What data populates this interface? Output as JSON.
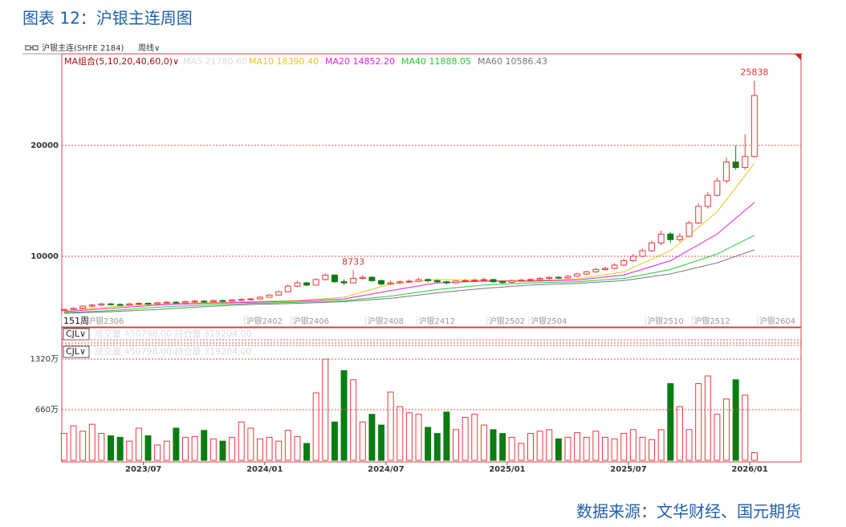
{
  "chart_data": {
    "type": "candlestick",
    "title": "图表 12：沪银主连周图",
    "source": "数据来源：文华财经、国元期货",
    "toolbar": {
      "symbol": "沪银主连(SHFE 2184)",
      "period": "周线∨"
    },
    "ma_group": "MA组合(5,10,20,40,60,0)∨",
    "ma_disabled": "MA5 21780.60",
    "bar_count_label": "151周",
    "xlim": [
      -0.5,
      158
    ],
    "ylim": [
      3620,
      28260
    ],
    "yticks": [
      10000,
      20000
    ],
    "grid": true,
    "up_color": "#e8393a",
    "down_color": "#0a7d12",
    "x": [
      0,
      2,
      4,
      6,
      8,
      10,
      12,
      14,
      16,
      18,
      20,
      22,
      24,
      26,
      28,
      30,
      32,
      34,
      36,
      38,
      40,
      42,
      44,
      46,
      48,
      50,
      52,
      54,
      56,
      58,
      60,
      62,
      64,
      66,
      68,
      70,
      72,
      74,
      76,
      78,
      80,
      82,
      84,
      86,
      88,
      90,
      92,
      94,
      96,
      98,
      100,
      102,
      104,
      106,
      108,
      110,
      112,
      114,
      116,
      118,
      120,
      122,
      124,
      126,
      128,
      130,
      132,
      134,
      136,
      138,
      140,
      142,
      144,
      146,
      148
    ],
    "open": [
      5100,
      5200,
      5300,
      5500,
      5600,
      5700,
      5650,
      5600,
      5700,
      5750,
      5700,
      5800,
      5850,
      5800,
      5900,
      5950,
      5900,
      6000,
      5950,
      6050,
      6100,
      6150,
      6300,
      6500,
      6800,
      7300,
      7600,
      7400,
      7900,
      8300,
      7700,
      7600,
      8000,
      8100,
      7800,
      7500,
      7600,
      7700,
      7750,
      7900,
      7800,
      7700,
      7600,
      7750,
      7800,
      7850,
      7900,
      7700,
      7650,
      7800,
      7850,
      7900,
      8000,
      8100,
      8050,
      8200,
      8400,
      8600,
      8800,
      8900,
      9200,
      9600,
      10000,
      10500,
      11200,
      12000,
      11500,
      11800,
      13000,
      14500,
      15500,
      16800,
      18500,
      18000,
      19000
    ],
    "high": [
      5300,
      5400,
      5600,
      5700,
      5800,
      5800,
      5750,
      5800,
      5850,
      5850,
      5900,
      5950,
      5950,
      6000,
      6050,
      6050,
      6100,
      6100,
      6150,
      6200,
      6250,
      6400,
      6600,
      6900,
      7450,
      7800,
      7700,
      8000,
      8450,
      8350,
      7900,
      8733,
      8300,
      8200,
      7900,
      7800,
      7850,
      7900,
      8050,
      8000,
      7900,
      7800,
      7850,
      7950,
      7950,
      8050,
      7950,
      7800,
      7900,
      7950,
      8000,
      8100,
      8200,
      8200,
      8300,
      8500,
      8700,
      8950,
      9050,
      9350,
      9750,
      10200,
      10700,
      11400,
      12300,
      12200,
      12100,
      13200,
      14800,
      15800,
      17100,
      18900,
      20000,
      21000,
      25838
    ],
    "low": [
      5050,
      5150,
      5250,
      5400,
      5500,
      5550,
      5500,
      5550,
      5600,
      5600,
      5650,
      5700,
      5700,
      5750,
      5800,
      5800,
      5850,
      5850,
      5900,
      5950,
      6000,
      6100,
      6250,
      6450,
      6750,
      7200,
      7300,
      7350,
      7800,
      7600,
      7400,
      7550,
      7900,
      7700,
      7350,
      7400,
      7500,
      7600,
      7650,
      7650,
      7550,
      7450,
      7500,
      7650,
      7700,
      7750,
      7600,
      7500,
      7550,
      7700,
      7750,
      7800,
      7900,
      7950,
      7950,
      8100,
      8300,
      8500,
      8700,
      8800,
      9100,
      9500,
      9900,
      10400,
      11000,
      11200,
      11300,
      11700,
      12900,
      14300,
      15400,
      16600,
      17800,
      17800,
      18900
    ],
    "close": [
      5200,
      5300,
      5500,
      5600,
      5700,
      5650,
      5600,
      5700,
      5750,
      5700,
      5800,
      5850,
      5800,
      5900,
      5950,
      5900,
      6000,
      5950,
      6050,
      6100,
      6150,
      6300,
      6500,
      6800,
      7300,
      7600,
      7400,
      7900,
      8300,
      7700,
      7600,
      8000,
      8100,
      7800,
      7500,
      7600,
      7700,
      7750,
      7900,
      7800,
      7700,
      7600,
      7750,
      7800,
      7850,
      7900,
      7700,
      7650,
      7800,
      7850,
      7900,
      8000,
      8100,
      8050,
      8200,
      8400,
      8600,
      8800,
      8900,
      9200,
      9600,
      10000,
      10500,
      11200,
      12000,
      11500,
      11800,
      13000,
      14500,
      15500,
      16800,
      18500,
      18000,
      19000,
      24500
    ],
    "series": [
      {
        "name": "MA10 18390.40",
        "color": "#e6c619",
        "x": [
          0,
          10,
          20,
          30,
          40,
          50,
          60,
          70,
          80,
          90,
          100,
          110,
          120,
          130,
          140,
          148
        ],
        "values": [
          5100,
          5450,
          5700,
          5800,
          5900,
          6000,
          6300,
          7500,
          7900,
          7800,
          7800,
          7950,
          8600,
          10500,
          14000,
          18390
        ]
      },
      {
        "name": "MA20 14852.20",
        "color": "#e020e0",
        "x": [
          0,
          10,
          20,
          30,
          40,
          50,
          60,
          70,
          80,
          90,
          100,
          110,
          120,
          130,
          140,
          148
        ],
        "values": [
          5000,
          5300,
          5600,
          5750,
          5850,
          5950,
          6150,
          6900,
          7600,
          7750,
          7750,
          7850,
          8300,
          9600,
          12000,
          14852
        ]
      },
      {
        "name": "MA40 11888.05",
        "color": "#22cc33",
        "x": [
          0,
          10,
          20,
          30,
          40,
          50,
          60,
          70,
          80,
          90,
          100,
          110,
          120,
          130,
          140,
          148
        ],
        "values": [
          4900,
          5100,
          5400,
          5600,
          5750,
          5850,
          6000,
          6400,
          7000,
          7400,
          7600,
          7700,
          8000,
          8800,
          10200,
          11888
        ]
      },
      {
        "name": "MA60 10586.43",
        "color": "#777777",
        "x": [
          0,
          10,
          20,
          30,
          40,
          50,
          60,
          70,
          80,
          90,
          100,
          110,
          120,
          130,
          140,
          148
        ],
        "values": [
          4850,
          5000,
          5200,
          5450,
          5650,
          5750,
          5900,
          6200,
          6700,
          7100,
          7400,
          7550,
          7800,
          8400,
          9400,
          10586
        ]
      }
    ],
    "contract_ticks": [
      {
        "value": 5,
        "label": "沪银2306"
      },
      {
        "value": 39,
        "label": "沪银2402"
      },
      {
        "value": 49,
        "label": "沪银2406"
      },
      {
        "value": 65,
        "label": "沪银2408"
      },
      {
        "value": 76,
        "label": "沪银2412"
      },
      {
        "value": 91,
        "label": "沪银2502"
      },
      {
        "value": 100,
        "label": "沪银2504"
      },
      {
        "value": 125,
        "label": "沪银2510"
      },
      {
        "value": 135,
        "label": "沪银2512"
      },
      {
        "value": 149,
        "label": "沪银2604"
      }
    ],
    "xticks": [
      {
        "value": 17,
        "label": "2023/07"
      },
      {
        "value": 43,
        "label": "2024/01"
      },
      {
        "value": 69,
        "label": "2024/07"
      },
      {
        "value": 95,
        "label": "2025/01"
      },
      {
        "value": 121,
        "label": "2025/07"
      },
      {
        "value": 147,
        "label": "2026/01"
      }
    ],
    "volume_panel": {
      "header": "CJL∨",
      "fields": "成交量 450798.00  持仓量 319204.00",
      "ylim": [
        0,
        1477
      ],
      "yticks": [
        {
          "value": 660,
          "label": "660万"
        },
        {
          "value": 1320,
          "label": "1320万"
        }
      ],
      "values": [
        350,
        450,
        380,
        470,
        350,
        320,
        300,
        250,
        420,
        320,
        200,
        250,
        420,
        300,
        310,
        390,
        280,
        250,
        300,
        500,
        420,
        280,
        300,
        250,
        390,
        310,
        220,
        880,
        1320,
        500,
        1170,
        1050,
        500,
        600,
        460,
        890,
        700,
        620,
        600,
        430,
        350,
        630,
        400,
        560,
        600,
        460,
        400,
        350,
        300,
        220,
        350,
        380,
        400,
        280,
        300,
        360,
        300,
        380,
        300,
        280,
        350,
        400,
        300,
        270,
        400,
        1000,
        700,
        400,
        1000,
        1100,
        600,
        800,
        1050,
        850,
        100
      ]
    }
  }
}
